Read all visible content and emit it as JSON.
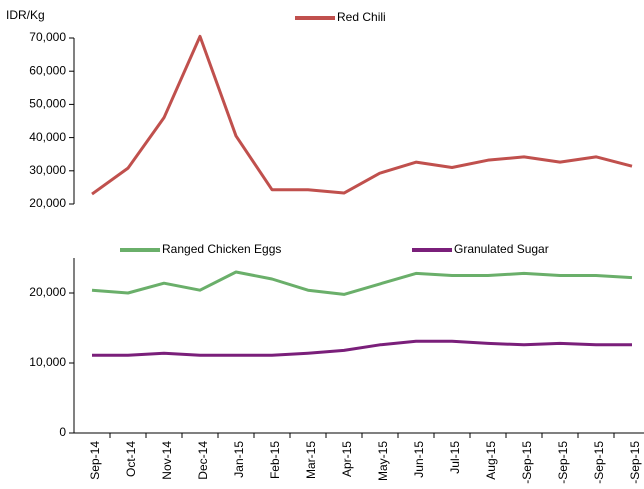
{
  "chart_data": [
    {
      "type": "line",
      "y_label": "IDR/Kg",
      "legend": "top",
      "series": [
        {
          "name": "Red Chili",
          "color": "#c0504d",
          "values": [
            23000,
            30800,
            46000,
            70500,
            40500,
            24300,
            24300,
            23300,
            29300,
            32600,
            31000,
            33200,
            34200,
            32600,
            34200,
            31400
          ]
        }
      ],
      "ylim": [
        20000,
        70000
      ],
      "yticks": [
        {
          "value": 20000,
          "label": "20,000"
        },
        {
          "value": 30000,
          "label": "30,000"
        },
        {
          "value": 40000,
          "label": "40,000"
        },
        {
          "value": 50000,
          "label": "50,000"
        },
        {
          "value": 60000,
          "label": "60,000"
        },
        {
          "value": 70000,
          "label": "70,000"
        }
      ]
    },
    {
      "type": "line",
      "legend": "top",
      "categories": [
        "Sep-14",
        "Oct-14",
        "Nov-14",
        "Dec-14",
        "Jan-15",
        "Feb-15",
        "Mar-15",
        "Apr-15",
        "May-15",
        "Jun-15",
        "Jul-15",
        "Aug-15",
        "-Sep-15",
        "-Sep-15",
        "-Sep-15",
        "-Sep-15"
      ],
      "series": [
        {
          "name": "Ranged Chicken Eggs",
          "color": "#6aaf6a",
          "values": [
            20400,
            20000,
            21400,
            20400,
            23000,
            22000,
            20400,
            19800,
            21300,
            22800,
            22500,
            22500,
            22800,
            22500,
            22500,
            22200
          ]
        },
        {
          "name": "Granulated Sugar",
          "color": "#7a1f7a",
          "values": [
            11100,
            11100,
            11400,
            11100,
            11100,
            11100,
            11400,
            11800,
            12600,
            13100,
            13100,
            12800,
            12600,
            12800,
            12600,
            12600
          ]
        }
      ],
      "ylim": [
        0,
        25000
      ],
      "yticks": [
        0,
        {
          "value": 10000,
          "label": "10,000"
        },
        {
          "value": 20000,
          "label": "20,000"
        }
      ]
    }
  ]
}
